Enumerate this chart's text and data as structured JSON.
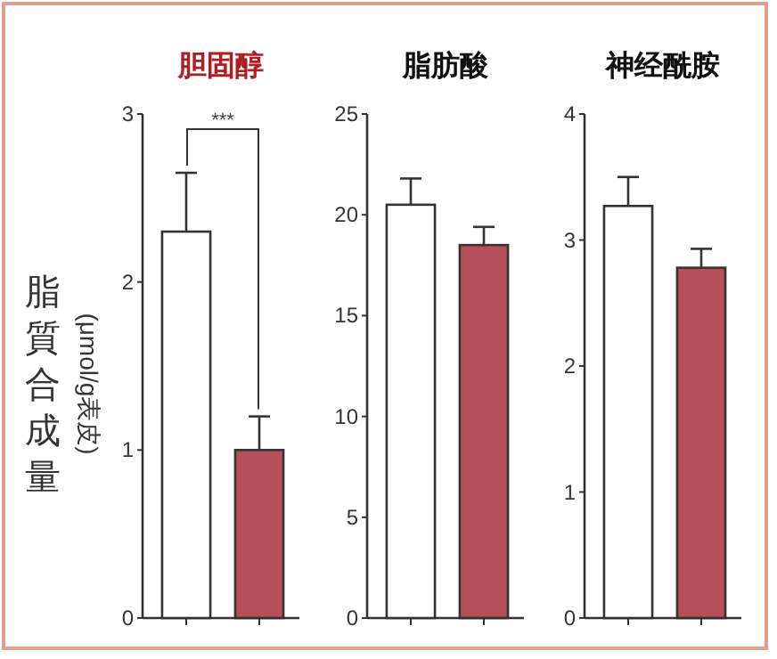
{
  "chart_data": [
    {
      "type": "bar",
      "title": "胆固醇",
      "ylabel": "脂質合成量\n(μmol/g表皮)",
      "categories": [
        null,
        null
      ],
      "values": [
        2.3,
        1.0
      ],
      "colors": [
        "#ffffff",
        "#b5505a"
      ],
      "errors": [
        [
          2.3,
          2.65
        ],
        [
          1.0,
          1.2
        ]
      ],
      "ylim": [
        0,
        3
      ],
      "yticks": [
        0,
        1,
        2,
        3
      ],
      "grid": false,
      "annotations": [
        "***"
      ]
    },
    {
      "type": "bar",
      "title": "脂肪酸",
      "categories": [
        null,
        null
      ],
      "values": [
        20.5,
        18.5
      ],
      "colors": [
        "#ffffff",
        "#b5505a"
      ],
      "errors": [
        [
          20.5,
          21.8
        ],
        [
          18.5,
          19.4
        ]
      ],
      "ylim": [
        0,
        25
      ],
      "yticks": [
        0,
        5,
        10,
        15,
        20,
        25
      ],
      "grid": false
    },
    {
      "type": "bar",
      "title": "神经酰胺",
      "categories": [
        null,
        null
      ],
      "values": [
        3.27,
        2.78
      ],
      "colors": [
        "#ffffff",
        "#b5505a"
      ],
      "errors": [
        [
          3.27,
          3.5
        ],
        [
          2.78,
          2.93
        ]
      ],
      "ylim": [
        0,
        4
      ],
      "yticks": [
        0,
        1,
        2,
        3,
        4
      ],
      "grid": false
    }
  ]
}
